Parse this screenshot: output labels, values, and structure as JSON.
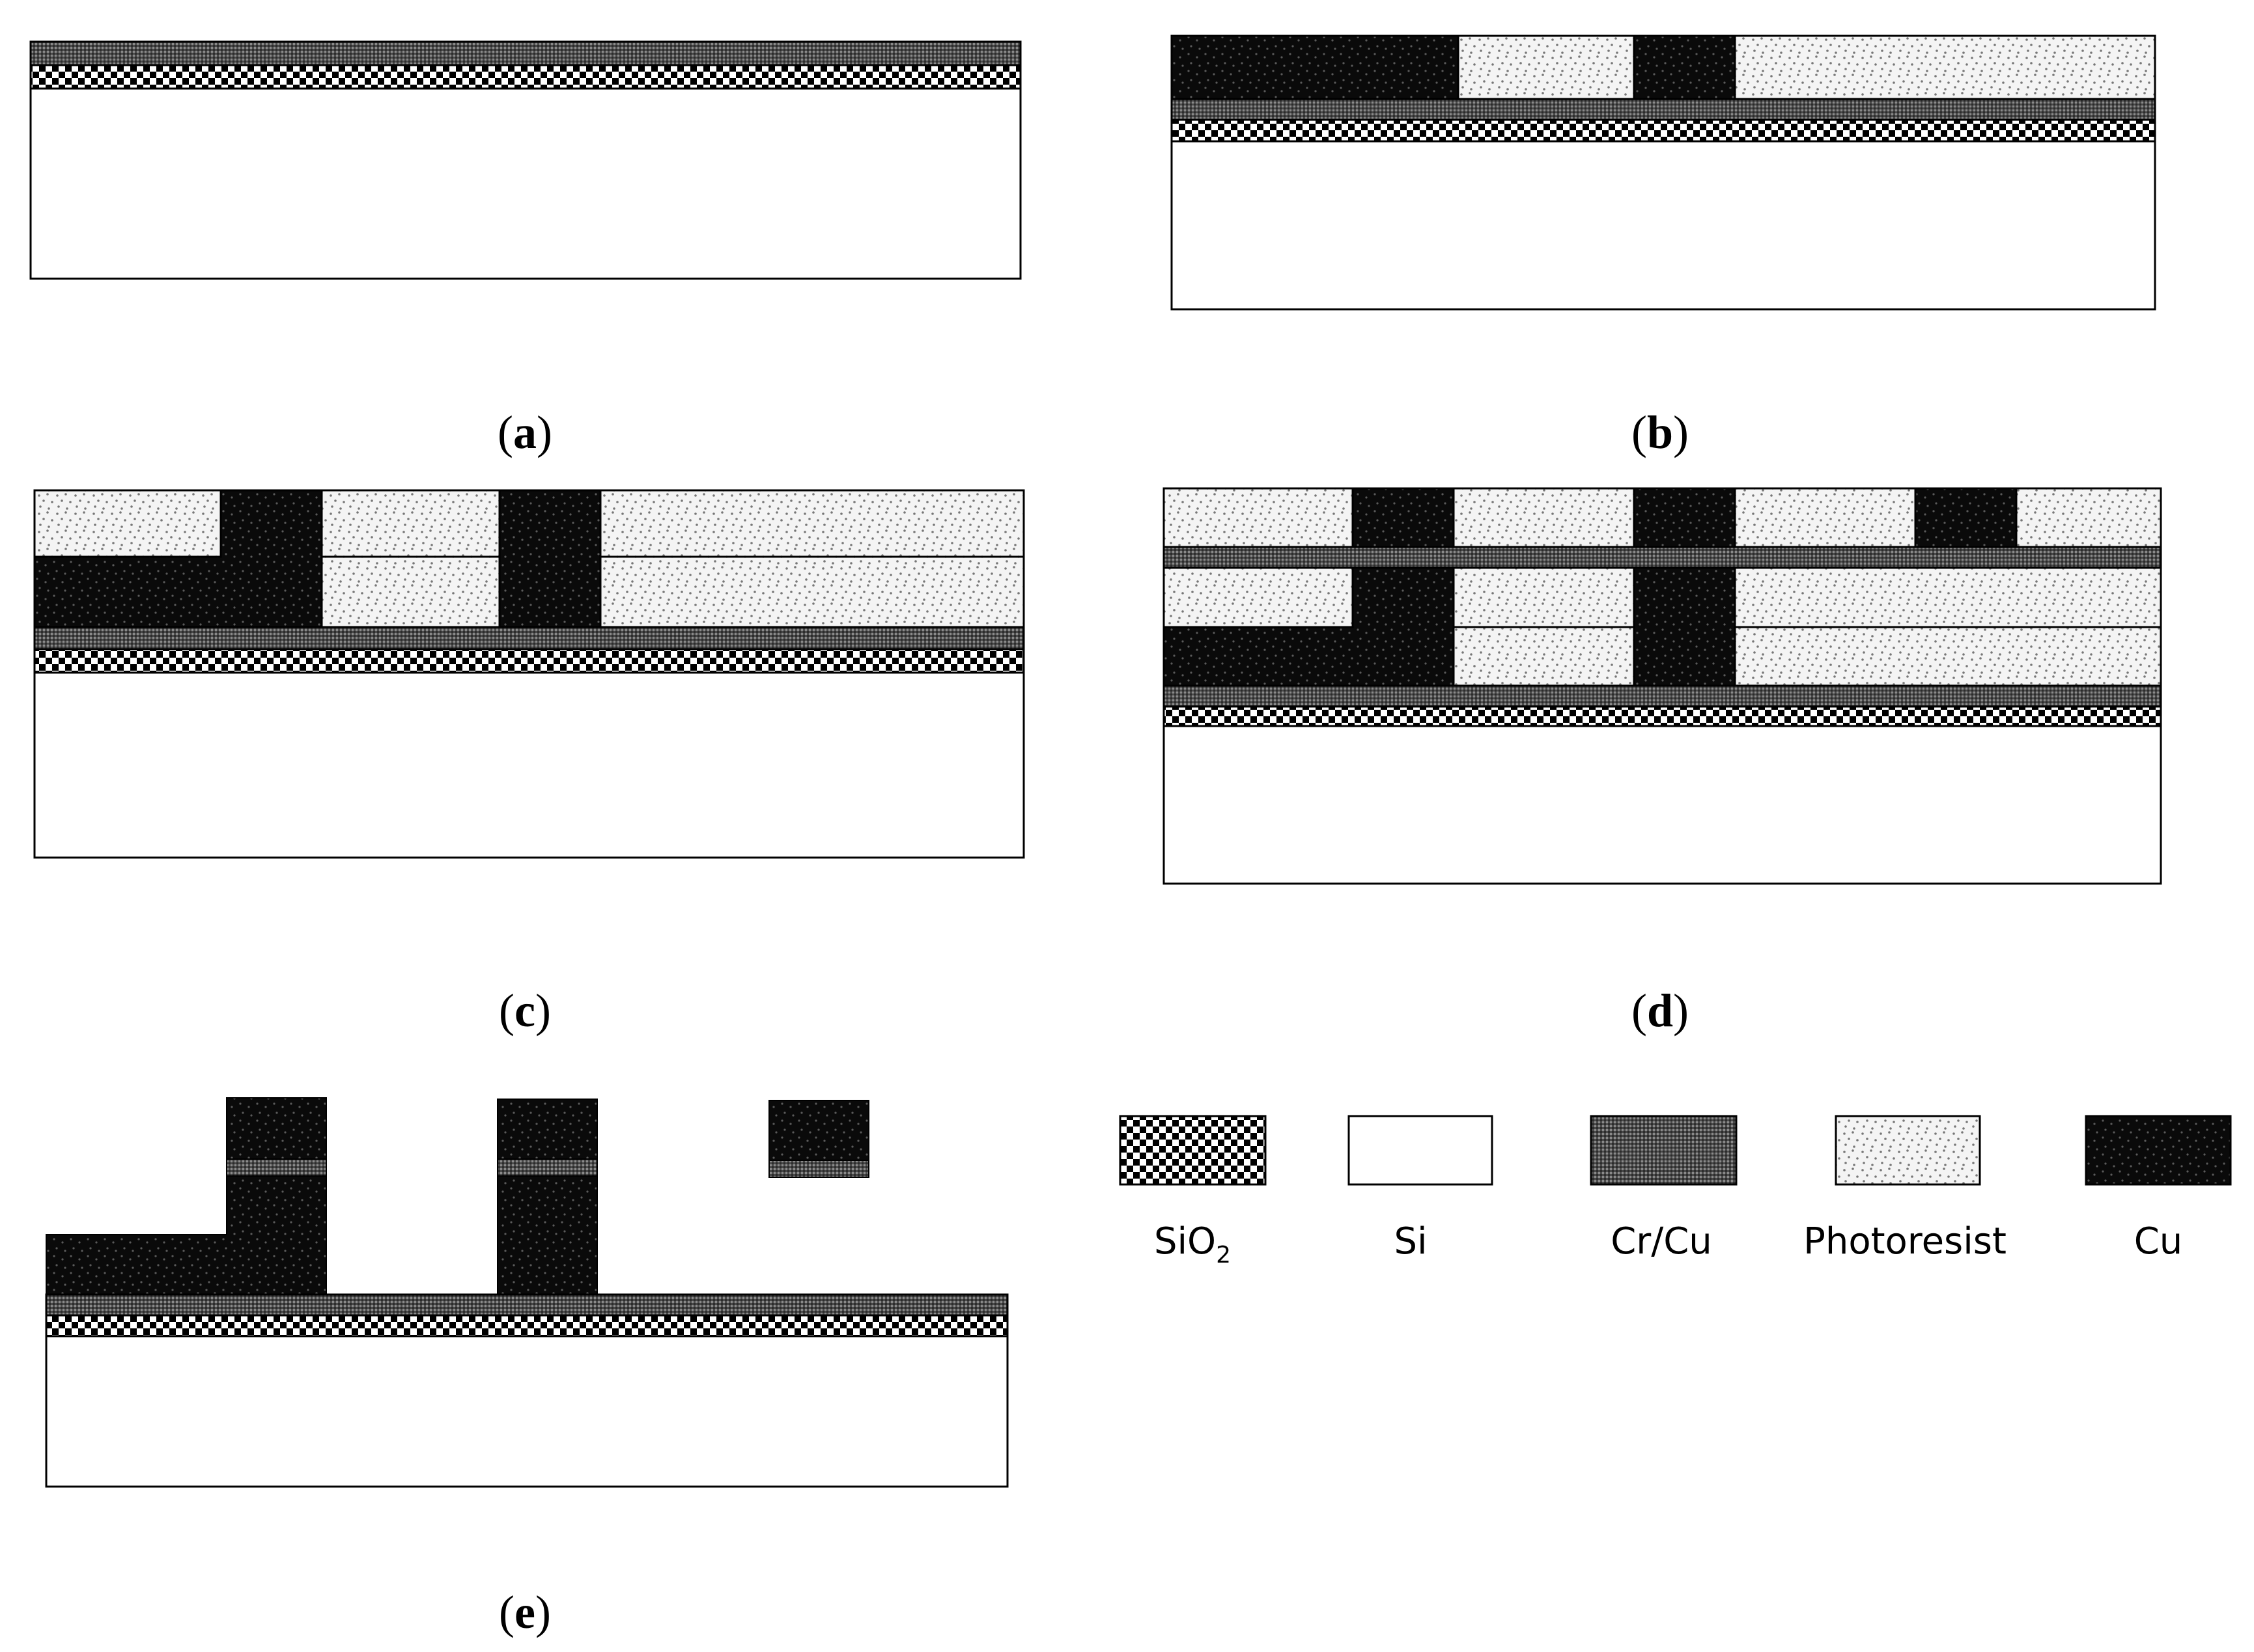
{
  "materials": {
    "sio2": {
      "label": "SiO",
      "subscript": "2",
      "pattern": "checker"
    },
    "si": {
      "label": "Si",
      "pattern": "none"
    },
    "crcu": {
      "label": "Cr/Cu",
      "pattern": "fine-hatch"
    },
    "pr": {
      "label": "Photoresist",
      "pattern": "light-speckle"
    },
    "cu": {
      "label": "Cu",
      "pattern": "dark-dots"
    }
  },
  "panels": {
    "a": {
      "letter": "a"
    },
    "b": {
      "letter": "b"
    },
    "c": {
      "letter": "c"
    },
    "d": {
      "letter": "d"
    },
    "e": {
      "letter": "e"
    }
  },
  "colors": {
    "stroke": "#000000",
    "background": "#ffffff"
  }
}
